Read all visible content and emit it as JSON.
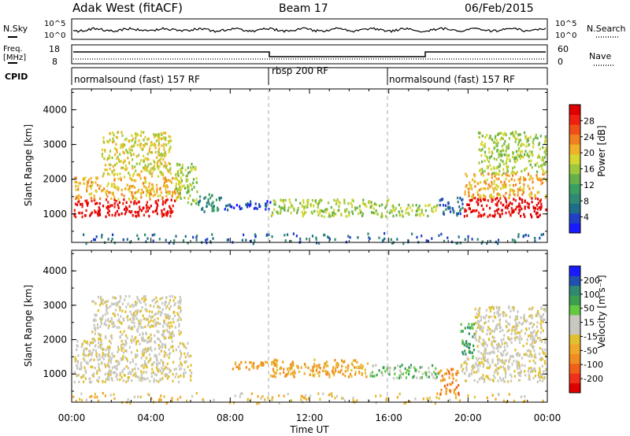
{
  "header": {
    "title_left": "Adak West (fitACF)",
    "title_center": "Beam 17",
    "title_right": "06/Feb/2015"
  },
  "top_panels": {
    "nsky_label": "N.Sky",
    "nsearch_label": "N.Search",
    "noise_ticks": [
      "10^5",
      "10^0"
    ],
    "freq_label_1": "Freq.",
    "freq_label_2": "[MHz]",
    "freq_ticks": [
      "18",
      "8"
    ],
    "nave_label": "Nave",
    "nave_ticks": [
      "60",
      "0"
    ],
    "cpid_label": "CPID"
  },
  "cpid_segments": [
    {
      "start_hour": 0,
      "end_hour": 10,
      "label": "normalsound (fast) 157 RF"
    },
    {
      "start_hour": 10,
      "end_hour": 16,
      "label": "rbsp 200 RF"
    },
    {
      "start_hour": 16,
      "end_hour": 24,
      "label": "normalsound (fast) 157 RF"
    }
  ],
  "chart_data": [
    {
      "type": "heatmap",
      "title": "",
      "ylabel": "Slant Range [km]",
      "xlabel": "",
      "x_ticks": [
        "00:00",
        "04:00",
        "08:00",
        "12:00",
        "16:00",
        "20:00",
        "00:00"
      ],
      "y_ticks": [
        1000,
        2000,
        3000,
        4000
      ],
      "xlim": [
        0,
        24
      ],
      "ylim": [
        180,
        4600
      ],
      "colorbar": {
        "label": "Power [dB]",
        "ticks": [
          "28",
          "24",
          "20",
          "16",
          "12",
          "8",
          "4"
        ],
        "colors": [
          "#1a1aff",
          "#2040c8",
          "#1e6e8a",
          "#2e8a70",
          "#3aa060",
          "#66b04a",
          "#9cc83c",
          "#d6d630",
          "#f0b028",
          "#f08020",
          "#f05018",
          "#f02010",
          "#e00000"
        ]
      },
      "regions": [
        {
          "x": [
            0.1,
            5.2
          ],
          "y": [
            950,
            1450
          ],
          "level": 12
        },
        {
          "x": [
            0.1,
            5.5
          ],
          "y": [
            1450,
            2100
          ],
          "level": 8
        },
        {
          "x": [
            1.5,
            5.0
          ],
          "y": [
            2100,
            3400
          ],
          "level": 7
        },
        {
          "x": [
            5.2,
            6.3
          ],
          "y": [
            1300,
            2500
          ],
          "level": 6
        },
        {
          "x": [
            6.3,
            7.5
          ],
          "y": [
            1100,
            1600
          ],
          "level": 3
        },
        {
          "x": [
            7.6,
            10.0
          ],
          "y": [
            1150,
            1400
          ],
          "level": 1
        },
        {
          "x": [
            10.0,
            16.0
          ],
          "y": [
            950,
            1450
          ],
          "level": 6
        },
        {
          "x": [
            16.0,
            18.5
          ],
          "y": [
            950,
            1300
          ],
          "level": 6
        },
        {
          "x": [
            18.5,
            19.7
          ],
          "y": [
            1000,
            1500
          ],
          "level": 2
        },
        {
          "x": [
            19.7,
            23.9
          ],
          "y": [
            950,
            1500
          ],
          "level": 12
        },
        {
          "x": [
            19.8,
            23.9
          ],
          "y": [
            1500,
            2200
          ],
          "level": 8
        },
        {
          "x": [
            20.5,
            23.9
          ],
          "y": [
            2200,
            3400
          ],
          "level": 6
        },
        {
          "x": [
            0,
            24
          ],
          "y": [
            180,
            480
          ],
          "level": 2
        }
      ]
    },
    {
      "type": "heatmap",
      "title": "",
      "ylabel": "Slant Range [km]",
      "xlabel": "Time UT",
      "x_ticks": [
        "00:00",
        "04:00",
        "08:00",
        "12:00",
        "16:00",
        "20:00",
        "00:00"
      ],
      "y_ticks": [
        1000,
        2000,
        3000,
        4000
      ],
      "xlim": [
        0,
        24
      ],
      "ylim": [
        180,
        4600
      ],
      "colorbar": {
        "label": "Velocity [m s⁻¹]",
        "ticks": [
          "200",
          "100",
          "50",
          "15",
          "-15",
          "-50",
          "-100",
          "-200"
        ],
        "colors": [
          "#e00000",
          "#f03018",
          "#f06018",
          "#f08c20",
          "#f0a828",
          "#e0c030",
          "#c8c8c0",
          "#c8c8c0",
          "#64c840",
          "#3aa050",
          "#2e8a70",
          "#2050b0",
          "#1a1aff"
        ]
      },
      "regions": [
        {
          "x": [
            0.1,
            6.0
          ],
          "y": [
            800,
            2000
          ],
          "level": 6
        },
        {
          "x": [
            1.0,
            5.5
          ],
          "y": [
            2000,
            3300
          ],
          "level": 6
        },
        {
          "x": [
            8.0,
            10.0
          ],
          "y": [
            1150,
            1400
          ],
          "level": 4
        },
        {
          "x": [
            10.0,
            15.0
          ],
          "y": [
            950,
            1450
          ],
          "level": 4
        },
        {
          "x": [
            15.0,
            16.0
          ],
          "y": [
            950,
            1300
          ],
          "level": 8
        },
        {
          "x": [
            16.0,
            18.5
          ],
          "y": [
            900,
            1300
          ],
          "level": 8
        },
        {
          "x": [
            18.5,
            19.5
          ],
          "y": [
            400,
            1200
          ],
          "level": 3
        },
        {
          "x": [
            19.6,
            23.9
          ],
          "y": [
            800,
            1500
          ],
          "level": 6
        },
        {
          "x": [
            19.6,
            20.3
          ],
          "y": [
            1500,
            2500
          ],
          "level": 9
        },
        {
          "x": [
            20.3,
            23.9
          ],
          "y": [
            1500,
            3000
          ],
          "level": 6
        },
        {
          "x": [
            0,
            24
          ],
          "y": [
            180,
            480
          ],
          "level": 5
        }
      ]
    }
  ]
}
